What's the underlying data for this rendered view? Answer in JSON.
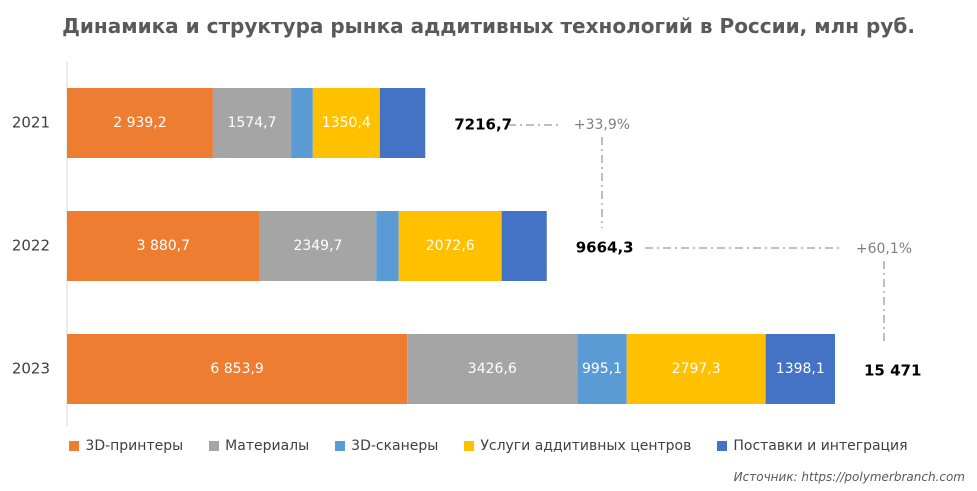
{
  "chart_data": {
    "type": "bar",
    "orientation": "horizontal",
    "stacked": true,
    "title": "Динамика и структура рынка аддитивных технологий в России, млн руб.",
    "categories": [
      "2021",
      "2022",
      "2023"
    ],
    "series": [
      {
        "name": "3D-принтеры",
        "color": "#ED7D31",
        "values": [
          2939.2,
          3880.7,
          6853.9
        ],
        "labels": [
          "2 939,2",
          "3 880,7",
          "6 853,9"
        ]
      },
      {
        "name": "Материалы",
        "color": "#A5A5A5",
        "values": [
          1574.7,
          2349.7,
          3426.6
        ],
        "labels": [
          "1574,7",
          "2349,7",
          "3426,6"
        ]
      },
      {
        "name": "3D-сканеры",
        "color": "#5B9BD5",
        "values": [
          438.0,
          453.0,
          995.1
        ],
        "labels": [
          "",
          "",
          "995,1"
        ]
      },
      {
        "name": "Услуги аддитивных центров",
        "color": "#FFC000",
        "values": [
          1350.4,
          2072.6,
          2797.3
        ],
        "labels": [
          "1350,4",
          "2072,6",
          "2797,3"
        ]
      },
      {
        "name": "Поставки и интеграция",
        "color": "#4472C4",
        "values": [
          914.4,
          908.3,
          1398.1
        ],
        "labels": [
          "",
          "",
          "1398,1"
        ]
      }
    ],
    "totals": [
      "7216,7",
      "9664,3",
      "15 471"
    ],
    "total_values": [
      7216.7,
      9664.3,
      15471
    ],
    "growth": [
      "+33,9%",
      "+60,1%"
    ],
    "xlim": [
      0,
      15471
    ],
    "grid": false,
    "legend_position": "bottom"
  },
  "source": "Источник: https://polymerbranch.com"
}
